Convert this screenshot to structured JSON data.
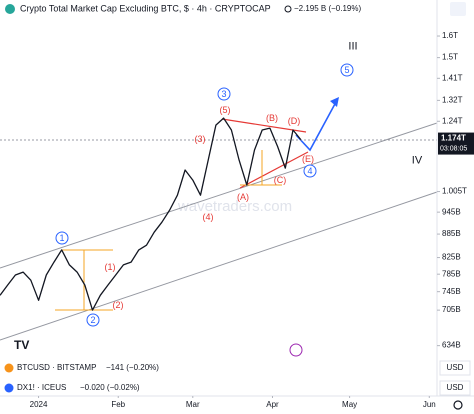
{
  "header": {
    "symbol_title": "Crypto Total Market Cap Excluding BTC, $ · 4h · CRYPTOCAP",
    "change": "−2.195 B (−0.19%)"
  },
  "chart_data": {
    "type": "line",
    "log_scale": true,
    "x": [
      -15,
      -12,
      -9,
      -6,
      -3,
      0,
      3,
      6,
      9,
      12,
      15,
      18,
      21,
      24,
      27,
      30,
      33,
      36,
      39,
      42,
      45,
      48,
      51,
      54,
      57,
      60,
      63,
      66,
      69,
      72,
      75,
      78,
      81,
      84,
      87,
      90,
      93,
      96,
      99,
      102
    ],
    "series": [
      {
        "color": "#131722",
        "values": [
          737,
          760,
          783,
          790,
          771,
          726,
          783,
          814,
          844,
          807,
          790,
          760,
          705,
          737,
          760,
          783,
          807,
          814,
          844,
          856,
          890,
          917,
          951,
          994,
          1072,
          1040,
          994,
          1104,
          1226,
          1252,
          1208,
          1104,
          1025,
          1138,
          1208,
          1215,
          1150,
          1078,
          1208,
          1174
        ]
      }
    ],
    "xlim": [
      -15,
      155
    ],
    "xticks": [
      {
        "value": 0,
        "label": "2024"
      },
      {
        "value": 31,
        "label": "Feb"
      },
      {
        "value": 60,
        "label": "Mar"
      },
      {
        "value": 91,
        "label": "Apr"
      },
      {
        "value": 121,
        "label": "May"
      },
      {
        "value": 152,
        "label": "Jun"
      }
    ],
    "ylim": [
      547,
      1782
    ],
    "yticks": [
      {
        "value": 1600,
        "label": "1.6T"
      },
      {
        "value": 1500,
        "label": "1.5T"
      },
      {
        "value": 1410,
        "label": "1.41T"
      },
      {
        "value": 1320,
        "label": "1.32T"
      },
      {
        "value": 1240,
        "label": "1.24T"
      },
      {
        "value": 1005,
        "label": "1.005T"
      },
      {
        "value": 945,
        "label": "945B"
      },
      {
        "value": 885,
        "label": "885B"
      },
      {
        "value": 825,
        "label": "825B"
      },
      {
        "value": 785,
        "label": "785B"
      },
      {
        "value": 745,
        "label": "745B"
      },
      {
        "value": 705,
        "label": "705B"
      },
      {
        "value": 634,
        "label": "634B"
      }
    ],
    "last_price": {
      "value": 1174,
      "label": "1.174T"
    },
    "countdown": "03:08:05",
    "currency_units": [
      "USD",
      "USD"
    ],
    "watermark": "wavetraders.com",
    "annotations": [
      "III",
      "IV",
      "(1)",
      "(2)",
      "(3)",
      "(4)",
      "(5)",
      "(A)",
      "(B)",
      "(C)",
      "(D)",
      "(E)",
      "1",
      "2",
      "3",
      "4",
      "5"
    ]
  },
  "compare": [
    {
      "symbol": "BTCUSD · BITSTAMP",
      "change": "−141 (−0.20%)"
    },
    {
      "symbol": "DX1! · ICEUS",
      "change": "−0.020 (−0.02%)"
    }
  ]
}
